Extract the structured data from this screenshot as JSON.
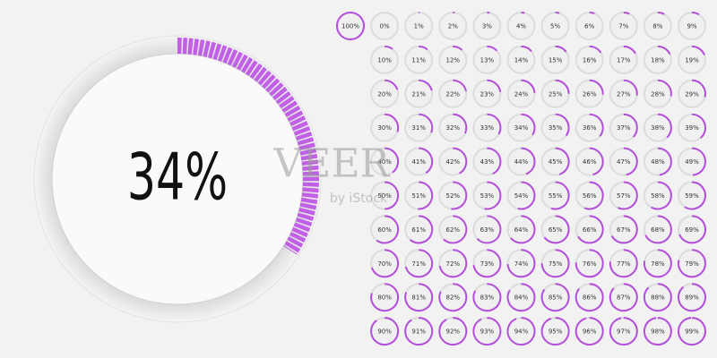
{
  "big": {
    "label": "34%",
    "value": 34
  },
  "watermark": {
    "title": "VEER",
    "subtitle": "by iStock"
  },
  "gauges": [
    {
      "label": "100%",
      "value": 100
    },
    {
      "label": "0%",
      "value": 0
    },
    {
      "label": "1%",
      "value": 1
    },
    {
      "label": "2%",
      "value": 2
    },
    {
      "label": "3%",
      "value": 3
    },
    {
      "label": "4%",
      "value": 4
    },
    {
      "label": "5%",
      "value": 5
    },
    {
      "label": "6%",
      "value": 6
    },
    {
      "label": "7%",
      "value": 7
    },
    {
      "label": "8%",
      "value": 8
    },
    {
      "label": "9%",
      "value": 9
    },
    {
      "label": "10%",
      "value": 10
    },
    {
      "label": "11%",
      "value": 11
    },
    {
      "label": "12%",
      "value": 12
    },
    {
      "label": "13%",
      "value": 13
    },
    {
      "label": "14%",
      "value": 14
    },
    {
      "label": "15%",
      "value": 15
    },
    {
      "label": "16%",
      "value": 16
    },
    {
      "label": "17%",
      "value": 17
    },
    {
      "label": "18%",
      "value": 18
    },
    {
      "label": "19%",
      "value": 19
    },
    {
      "label": "20%",
      "value": 20
    },
    {
      "label": "21%",
      "value": 21
    },
    {
      "label": "22%",
      "value": 22
    },
    {
      "label": "23%",
      "value": 23
    },
    {
      "label": "24%",
      "value": 24
    },
    {
      "label": "25%",
      "value": 25
    },
    {
      "label": "26%",
      "value": 26
    },
    {
      "label": "27%",
      "value": 27
    },
    {
      "label": "28%",
      "value": 28
    },
    {
      "label": "29%",
      "value": 29
    },
    {
      "label": "30%",
      "value": 30
    },
    {
      "label": "31%",
      "value": 31
    },
    {
      "label": "32%",
      "value": 32
    },
    {
      "label": "33%",
      "value": 33
    },
    {
      "label": "34%",
      "value": 34
    },
    {
      "label": "35%",
      "value": 35
    },
    {
      "label": "36%",
      "value": 36
    },
    {
      "label": "37%",
      "value": 37
    },
    {
      "label": "38%",
      "value": 38
    },
    {
      "label": "39%",
      "value": 39
    },
    {
      "label": "40%",
      "value": 40
    },
    {
      "label": "41%",
      "value": 41
    },
    {
      "label": "42%",
      "value": 42
    },
    {
      "label": "43%",
      "value": 43
    },
    {
      "label": "44%",
      "value": 44
    },
    {
      "label": "45%",
      "value": 45
    },
    {
      "label": "46%",
      "value": 46
    },
    {
      "label": "47%",
      "value": 47
    },
    {
      "label": "48%",
      "value": 48
    },
    {
      "label": "49%",
      "value": 49
    },
    {
      "label": "50%",
      "value": 50
    },
    {
      "label": "51%",
      "value": 51
    },
    {
      "label": "52%",
      "value": 52
    },
    {
      "label": "53%",
      "value": 53
    },
    {
      "label": "54%",
      "value": 54
    },
    {
      "label": "55%",
      "value": 55
    },
    {
      "label": "56%",
      "value": 56
    },
    {
      "label": "57%",
      "value": 57
    },
    {
      "label": "58%",
      "value": 58
    },
    {
      "label": "59%",
      "value": 59
    },
    {
      "label": "60%",
      "value": 60
    },
    {
      "label": "61%",
      "value": 61
    },
    {
      "label": "62%",
      "value": 62
    },
    {
      "label": "63%",
      "value": 63
    },
    {
      "label": "64%",
      "value": 64
    },
    {
      "label": "65%",
      "value": 65
    },
    {
      "label": "66%",
      "value": 66
    },
    {
      "label": "67%",
      "value": 67
    },
    {
      "label": "68%",
      "value": 68
    },
    {
      "label": "69%",
      "value": 69
    },
    {
      "label": "70%",
      "value": 70
    },
    {
      "label": "71%",
      "value": 71
    },
    {
      "label": "72%",
      "value": 72
    },
    {
      "label": "73%",
      "value": 73
    },
    {
      "label": "74%",
      "value": 74
    },
    {
      "label": "75%",
      "value": 75
    },
    {
      "label": "76%",
      "value": 76
    },
    {
      "label": "77%",
      "value": 77
    },
    {
      "label": "78%",
      "value": 78
    },
    {
      "label": "79%",
      "value": 79
    },
    {
      "label": "80%",
      "value": 80
    },
    {
      "label": "81%",
      "value": 81
    },
    {
      "label": "82%",
      "value": 82
    },
    {
      "label": "83%",
      "value": 83
    },
    {
      "label": "84%",
      "value": 84
    },
    {
      "label": "85%",
      "value": 85
    },
    {
      "label": "86%",
      "value": 86
    },
    {
      "label": "87%",
      "value": 87
    },
    {
      "label": "88%",
      "value": 88
    },
    {
      "label": "89%",
      "value": 89
    },
    {
      "label": "90%",
      "value": 90
    },
    {
      "label": "91%",
      "value": 91
    },
    {
      "label": "92%",
      "value": 92
    },
    {
      "label": "93%",
      "value": 93
    },
    {
      "label": "94%",
      "value": 94
    },
    {
      "label": "95%",
      "value": 95
    },
    {
      "label": "96%",
      "value": 96
    },
    {
      "label": "97%",
      "value": 97
    },
    {
      "label": "98%",
      "value": 98
    },
    {
      "label": "99%",
      "value": 99
    }
  ]
}
